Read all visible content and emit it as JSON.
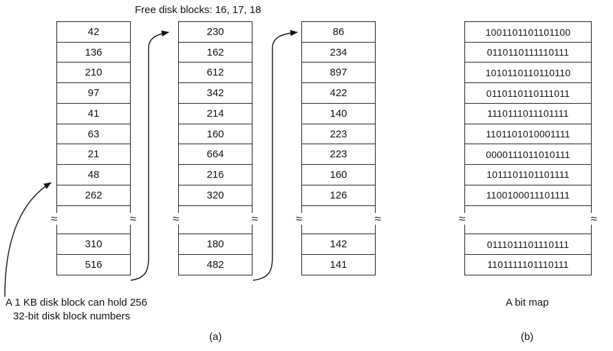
{
  "header": {
    "free_blocks": "Free disk blocks: 16, 17, 18"
  },
  "lists": [
    {
      "first": [
        "42",
        "136",
        "210",
        "97",
        "41",
        "63",
        "21",
        "48",
        "262"
      ],
      "last": [
        "310",
        "516"
      ]
    },
    {
      "first": [
        "230",
        "162",
        "612",
        "342",
        "214",
        "160",
        "664",
        "216",
        "320"
      ],
      "last": [
        "180",
        "482"
      ]
    },
    {
      "first": [
        "86",
        "234",
        "897",
        "422",
        "140",
        "223",
        "223",
        "160",
        "126"
      ],
      "last": [
        "142",
        "141"
      ]
    }
  ],
  "bitmap": {
    "first": [
      "1001101101101100",
      "0110110111110111",
      "1010110110110110",
      "0110110110111011",
      "1110111011101111",
      "1101101010001111",
      "0000111011010111",
      "1011101101101111",
      "1100100011101111"
    ],
    "last": [
      "0111011101110111",
      "1101111101110111"
    ]
  },
  "annotation": {
    "line1": "A 1 KB disk block can hold 256",
    "line2": "32-bit disk block numbers"
  },
  "captions": {
    "bitmap": "A bit map",
    "a": "(a)",
    "b": "(b)"
  },
  "gap_symbol": "≈"
}
